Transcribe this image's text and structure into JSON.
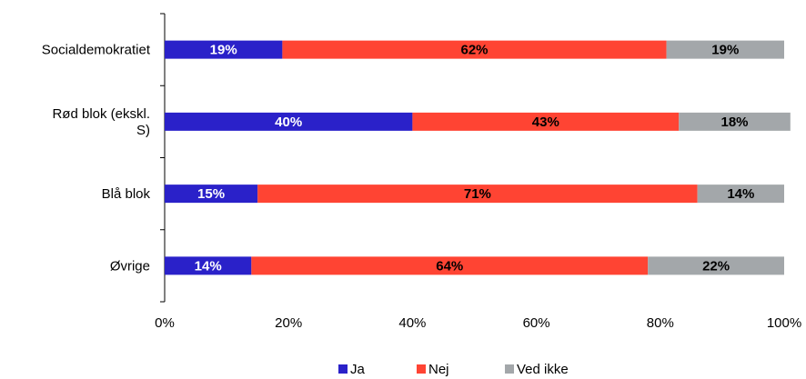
{
  "chart_data": {
    "type": "bar",
    "orientation": "horizontal",
    "stacked": true,
    "categories": [
      [
        "Socialdemokratiet"
      ],
      [
        "Rød blok (ekskl.",
        "S)"
      ],
      [
        "Blå blok"
      ],
      [
        "Øvrige"
      ]
    ],
    "series": [
      {
        "name": "Ja",
        "color": "#2a21c9",
        "label_color": "#ffffff",
        "values": [
          19,
          40,
          15,
          14
        ],
        "value_labels": [
          "19%",
          "40%",
          "15%",
          "14%"
        ]
      },
      {
        "name": "Nej",
        "color": "#ff4433",
        "label_color": "#000000",
        "values": [
          62,
          43,
          71,
          64
        ],
        "value_labels": [
          "62%",
          "43%",
          "71%",
          "64%"
        ]
      },
      {
        "name": "Ved ikke",
        "color": "#a3a7aa",
        "label_color": "#000000",
        "values": [
          19,
          18,
          14,
          22
        ],
        "value_labels": [
          "19%",
          "18%",
          "14%",
          "22%"
        ]
      }
    ],
    "x_ticks": [
      0,
      20,
      40,
      60,
      80,
      100
    ],
    "x_tick_labels": [
      "0%",
      "20%",
      "40%",
      "60%",
      "80%",
      "100%"
    ],
    "xlim": [
      0,
      100
    ],
    "grid": false,
    "legend_position": "bottom"
  }
}
